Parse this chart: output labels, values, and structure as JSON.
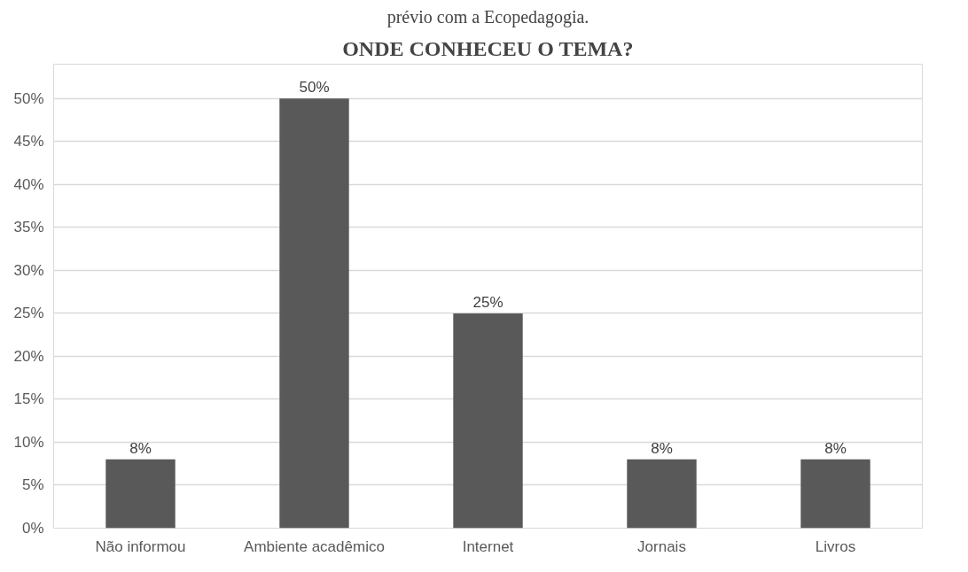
{
  "chart_data": {
    "type": "bar",
    "title": "ONDE CONHECEU O TEMA?",
    "annotations": [
      "prévio com a Ecopedagogia."
    ],
    "categories": [
      "Não informou",
      "Ambiente acadêmico",
      "Internet",
      "Jornais",
      "Livros"
    ],
    "values": [
      8,
      50,
      25,
      8,
      8
    ],
    "color": "#595959",
    "value_labels": [
      "8%",
      "50%",
      "25%",
      "8%",
      "8%"
    ],
    "ylim": [
      0,
      50
    ],
    "yticks": [
      {
        "value": 0,
        "label": "0%"
      },
      {
        "value": 5,
        "label": "5%"
      },
      {
        "value": 10,
        "label": "10%"
      },
      {
        "value": 15,
        "label": "15%"
      },
      {
        "value": 20,
        "label": "20%"
      },
      {
        "value": 25,
        "label": "25%"
      },
      {
        "value": 30,
        "label": "30%"
      },
      {
        "value": 35,
        "label": "35%"
      },
      {
        "value": 40,
        "label": "40%"
      },
      {
        "value": 45,
        "label": "45%"
      },
      {
        "value": 50,
        "label": "50%"
      }
    ],
    "grid": "y"
  }
}
